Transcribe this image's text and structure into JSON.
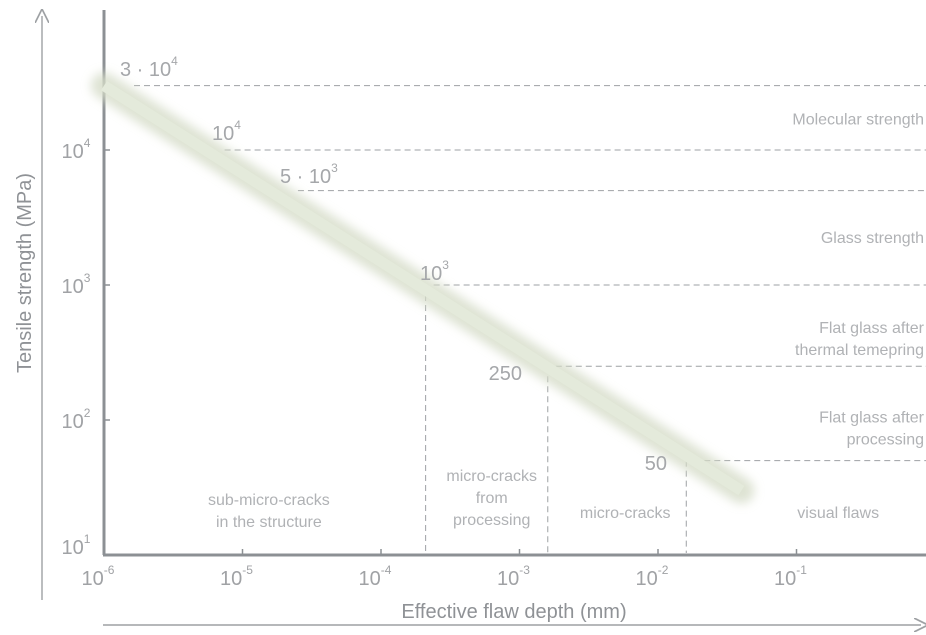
{
  "chart_data": {
    "type": "line",
    "title": "",
    "xlabel": "Effective flaw depth (mm)",
    "ylabel": "Tensile strength (MPa)",
    "x_scale": "log",
    "y_scale": "log",
    "x_ticks": [
      {
        "value": 1e-06,
        "base": "10",
        "exp": "-6"
      },
      {
        "value": 1e-05,
        "base": "10",
        "exp": "-5"
      },
      {
        "value": 0.0001,
        "base": "10",
        "exp": "-4"
      },
      {
        "value": 0.001,
        "base": "10",
        "exp": "-3"
      },
      {
        "value": 0.01,
        "base": "10",
        "exp": "-2"
      },
      {
        "value": 0.1,
        "base": "10",
        "exp": "-1"
      }
    ],
    "y_ticks": [
      {
        "value": 10,
        "base": "10",
        "exp": "1"
      },
      {
        "value": 100,
        "base": "10",
        "exp": "2"
      },
      {
        "value": 1000,
        "base": "10",
        "exp": "3"
      },
      {
        "value": 10000,
        "base": "10",
        "exp": "4"
      }
    ],
    "series": [
      {
        "x": [
          1e-06,
          0.04
        ],
        "y": [
          30000,
          30
        ]
      }
    ],
    "strength_levels": [
      {
        "value": 30000,
        "mantissa": "3 · ",
        "base": "10",
        "exp": "4",
        "x_at": 1e-06
      },
      {
        "value": 10000,
        "mantissa": "",
        "base": "10",
        "exp": "4",
        "x_at": 6.5e-06
      },
      {
        "value": 5000,
        "mantissa": "5 · ",
        "base": "10",
        "exp": "3",
        "x_at": 2.2e-05
      },
      {
        "value": 1000,
        "mantissa": "",
        "base": "10",
        "exp": "3",
        "x_at": 0.00021,
        "vline": true
      },
      {
        "value": 250,
        "mantissa": "",
        "base": "250",
        "exp": "",
        "x_at": 0.0016,
        "vline": true
      },
      {
        "value": 50,
        "mantissa": "",
        "base": "50",
        "exp": "",
        "x_at": 0.016,
        "vline": true
      }
    ],
    "level_labels": [
      {
        "lines": [
          "Molecular strength"
        ],
        "y": 15500
      },
      {
        "lines": [
          "Glass strength"
        ],
        "y": 2050
      },
      {
        "lines": [
          "Flat glass after",
          "thermal temepring"
        ],
        "y": 440
      },
      {
        "lines": [
          "Flat glass after",
          "processing"
        ],
        "y": 96
      }
    ],
    "zones": [
      {
        "lines": [
          "sub-micro-cracks",
          "in the structure"
        ],
        "x": 1.55e-05,
        "y": 19
      },
      {
        "lines": [
          "micro-cracks",
          "from",
          "processing"
        ],
        "x": 0.00063,
        "y": 19
      },
      {
        "lines": [
          "micro-cracks"
        ],
        "x": 0.0058,
        "y": 19
      },
      {
        "lines": [
          "visual flaws"
        ],
        "x": 0.2,
        "y": 19
      }
    ],
    "xlim": [
      1e-06,
      1.5
    ],
    "ylim": [
      10,
      80000
    ],
    "grid": false
  }
}
